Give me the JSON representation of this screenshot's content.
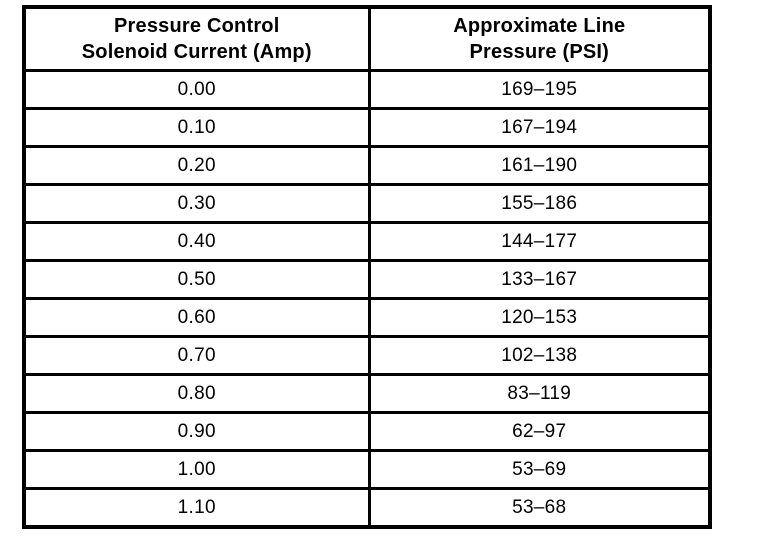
{
  "colors": {
    "border": "#000000",
    "background": "#ffffff",
    "text": "#000000"
  },
  "table": {
    "columns": [
      {
        "line1": "Pressure Control",
        "line2": "Solenoid Current (Amp)"
      },
      {
        "line1": "Approximate Line",
        "line2": "Pressure (PSI)"
      }
    ],
    "rows": [
      {
        "current": "0.00",
        "pressure": "169–195"
      },
      {
        "current": "0.10",
        "pressure": "167–194"
      },
      {
        "current": "0.20",
        "pressure": "161–190"
      },
      {
        "current": "0.30",
        "pressure": "155–186"
      },
      {
        "current": "0.40",
        "pressure": "144–177"
      },
      {
        "current": "0.50",
        "pressure": "133–167"
      },
      {
        "current": "0.60",
        "pressure": "120–153"
      },
      {
        "current": "0.70",
        "pressure": "102–138"
      },
      {
        "current": "0.80",
        "pressure": "83–119"
      },
      {
        "current": "0.90",
        "pressure": "62–97"
      },
      {
        "current": "1.00",
        "pressure": "53–69"
      },
      {
        "current": "1.10",
        "pressure": "53–68"
      }
    ]
  }
}
